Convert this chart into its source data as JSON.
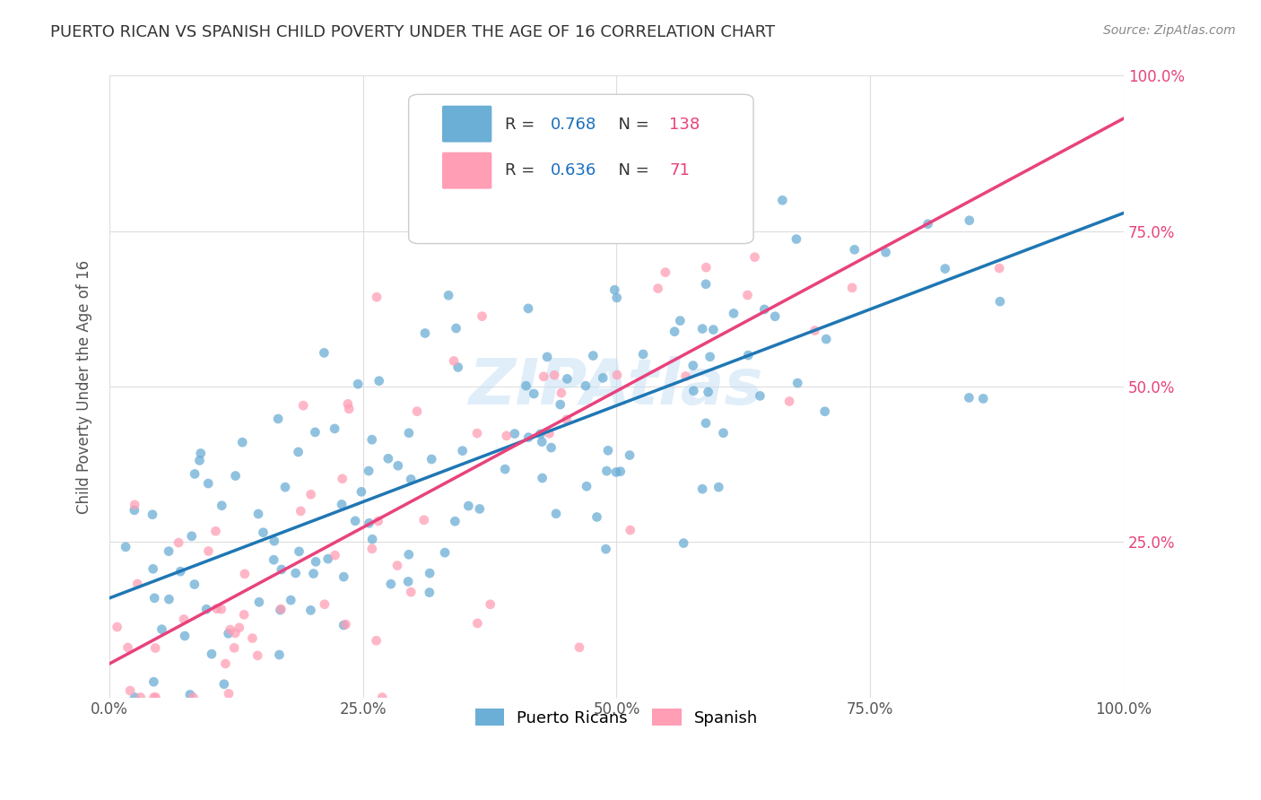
{
  "title": "PUERTO RICAN VS SPANISH CHILD POVERTY UNDER THE AGE OF 16 CORRELATION CHART",
  "source": "Source: ZipAtlas.com",
  "xlabel_bottom": "",
  "ylabel": "Child Poverty Under the Age of 16",
  "watermark": "ZIPAtlas",
  "blue_R": 0.768,
  "blue_N": 138,
  "pink_R": 0.636,
  "pink_N": 71,
  "xlim": [
    0,
    1
  ],
  "ylim": [
    0,
    1
  ],
  "xticks": [
    0,
    0.25,
    0.5,
    0.75,
    1.0
  ],
  "yticks": [
    0,
    0.25,
    0.5,
    0.75,
    1.0
  ],
  "xticklabels": [
    "0.0%",
    "25.0%",
    "50.0%",
    "75.0%",
    "100.0%"
  ],
  "yticklabels_right": [
    "",
    "25.0%",
    "50.0%",
    "75.0%",
    "100.0%"
  ],
  "blue_color": "#6baed6",
  "blue_line_color": "#1f77b4",
  "pink_color": "#ff9eb5",
  "pink_line_color": "#e8427c",
  "legend_R_color": "#1a6fbd",
  "legend_N_color": "#e8427c",
  "background_color": "#ffffff",
  "grid_color": "#dddddd",
  "title_color": "#333333",
  "axis_label_color": "#555555",
  "blue_seed": 42,
  "pink_seed": 7
}
